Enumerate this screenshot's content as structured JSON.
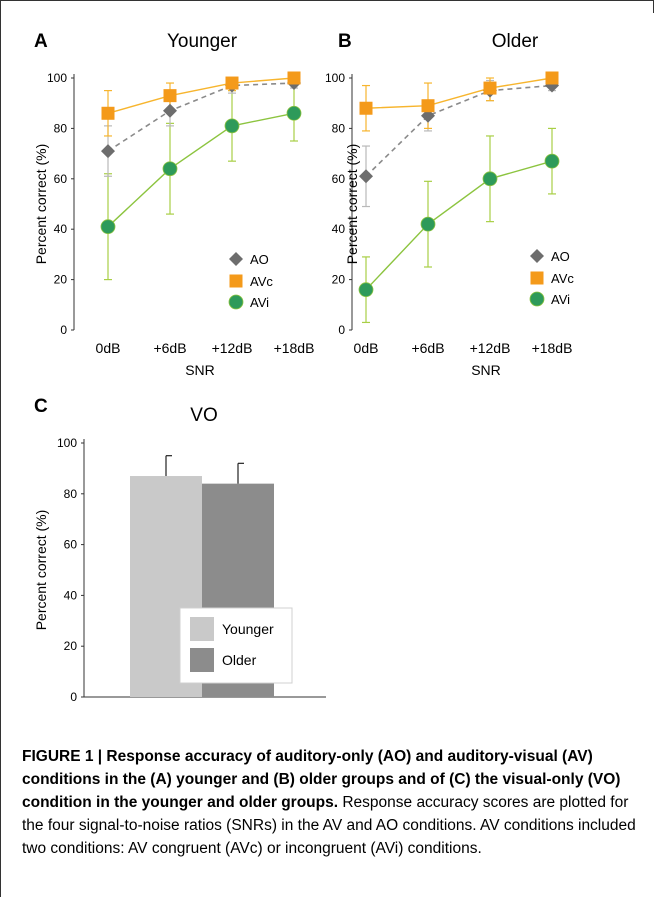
{
  "panels": [
    {
      "id": "A",
      "letter": "A",
      "title": "Younger",
      "ylabel": "Percent correct (%)",
      "xlabel": "SNR",
      "yticks": [
        "0",
        "20",
        "40",
        "60",
        "80",
        "100"
      ],
      "xticks": [
        "0dB",
        "+6dB",
        "+12dB",
        "+18dB"
      ],
      "legend": [
        "AO",
        "AVc",
        "AVi"
      ]
    },
    {
      "id": "B",
      "letter": "B",
      "title": "Older",
      "ylabel": "Percent correct (%)",
      "xlabel": "SNR",
      "yticks": [
        "0",
        "20",
        "40",
        "60",
        "80",
        "100"
      ],
      "xticks": [
        "0dB",
        "+6dB",
        "+12dB",
        "+18dB"
      ],
      "legend": [
        "AO",
        "AVc",
        "AVi"
      ]
    },
    {
      "id": "C",
      "letter": "C",
      "title": "VO",
      "ylabel": "Percent correct (%)",
      "yticks": [
        "0",
        "20",
        "40",
        "60",
        "80",
        "100"
      ],
      "legend": [
        "Younger",
        "Older"
      ]
    }
  ],
  "chart_data": [
    {
      "type": "line",
      "panel": "A",
      "title": "Younger",
      "xlabel": "SNR",
      "ylabel": "Percent correct (%)",
      "categories": [
        "0dB",
        "+6dB",
        "+12dB",
        "+18dB"
      ],
      "ylim": [
        0,
        100
      ],
      "legend_position": "bottom-right",
      "series": [
        {
          "name": "AO",
          "values": [
            71,
            87,
            97,
            98
          ],
          "err": [
            10,
            6,
            3,
            2
          ],
          "color": "#6d6d6d",
          "marker": "diamond",
          "dashed": true
        },
        {
          "name": "AVc",
          "values": [
            86,
            93,
            98,
            100
          ],
          "err": [
            9,
            5,
            3,
            1
          ],
          "color": "#f49a1a",
          "marker": "square",
          "dashed": false
        },
        {
          "name": "AVi",
          "values": [
            41,
            64,
            81,
            86
          ],
          "err": [
            21,
            18,
            14,
            11
          ],
          "color": "#2e9a5a",
          "marker": "circle",
          "dashed": false
        }
      ]
    },
    {
      "type": "line",
      "panel": "B",
      "title": "Older",
      "xlabel": "SNR",
      "ylabel": "Percent correct (%)",
      "categories": [
        "0dB",
        "+6dB",
        "+12dB",
        "+18dB"
      ],
      "ylim": [
        0,
        100
      ],
      "legend_position": "bottom-right",
      "series": [
        {
          "name": "AO",
          "values": [
            61,
            85,
            95,
            97
          ],
          "err": [
            12,
            6,
            4,
            2
          ],
          "color": "#6d6d6d",
          "marker": "diamond",
          "dashed": true
        },
        {
          "name": "AVc",
          "values": [
            88,
            89,
            96,
            100
          ],
          "err": [
            9,
            9,
            5,
            1
          ],
          "color": "#f49a1a",
          "marker": "square",
          "dashed": false
        },
        {
          "name": "AVi",
          "values": [
            16,
            42,
            60,
            67
          ],
          "err": [
            13,
            17,
            17,
            13
          ],
          "color": "#2e9a5a",
          "marker": "circle",
          "dashed": false
        }
      ]
    },
    {
      "type": "bar",
      "panel": "C",
      "title": "VO",
      "ylabel": "Percent correct (%)",
      "categories": [
        "Younger",
        "Older"
      ],
      "values": [
        87,
        84
      ],
      "err": [
        8,
        8
      ],
      "colors": [
        "#c9c9c9",
        "#8c8c8c"
      ],
      "ylim": [
        0,
        100
      ],
      "legend_position": "bottom-right"
    }
  ],
  "caption": {
    "bold": "FIGURE 1 | Response accuracy of auditory-only (AO) and auditory-visual (AV) conditions in the (A) younger and (B) older groups and of (C) the visual-only (VO) condition in the younger and older groups.",
    "text": " Response accuracy scores are plotted for the four signal-to-noise ratios (SNRs) in the AV and AO conditions. AV conditions included two conditions: AV congruent (AVc) or incongruent (AVi) conditions."
  }
}
